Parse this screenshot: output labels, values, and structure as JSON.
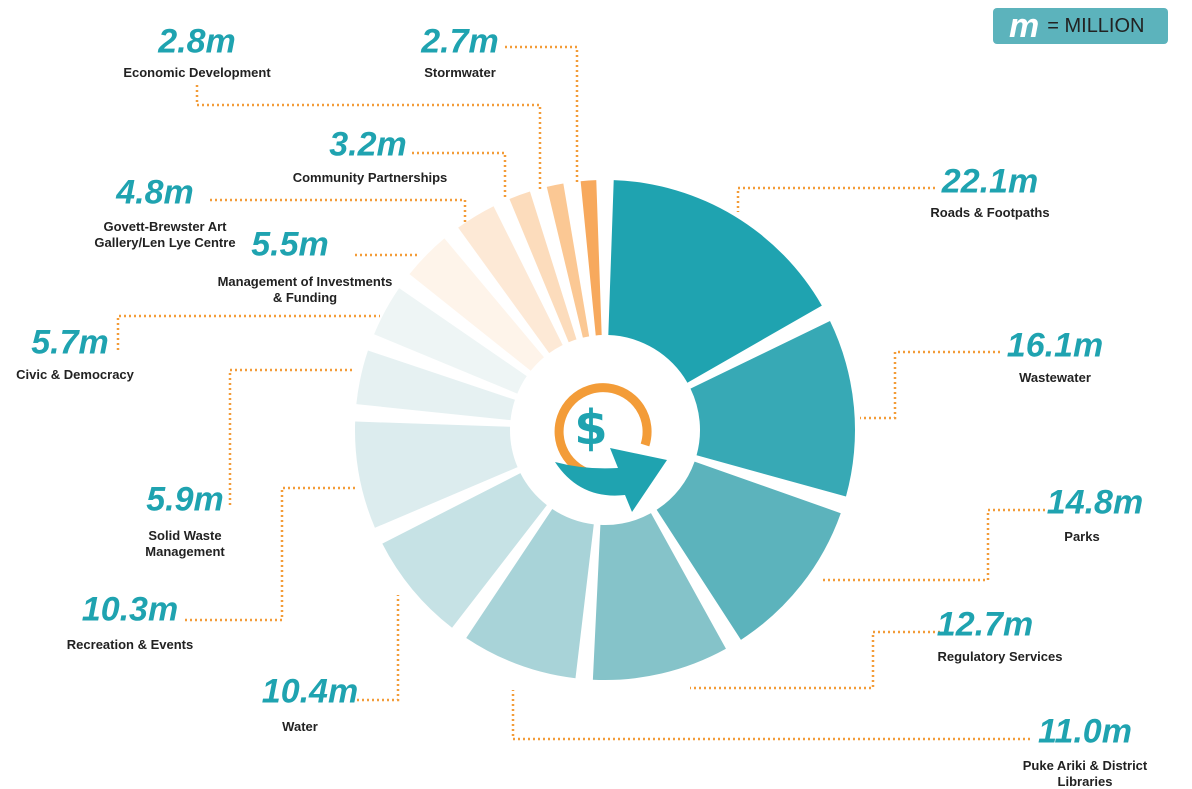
{
  "chart_data": {
    "type": "radial",
    "unit_note": {
      "symbol": "m",
      "text": "= MILLION"
    },
    "categories": [
      "Roads & Footpaths",
      "Wastewater",
      "Parks",
      "Regulatory Services",
      "Puke Ariki & District Libraries",
      "Water",
      "Recreation & Events",
      "Solid Waste Management",
      "Civic & Democracy",
      "Management of Investments & Funding",
      "Govett-Brewster Art Gallery/Len Lye Centre",
      "Community Partnerships",
      "Economic Development",
      "Stormwater"
    ],
    "values": [
      22.1,
      16.1,
      14.8,
      12.7,
      11.0,
      10.4,
      10.3,
      5.9,
      5.7,
      5.5,
      4.8,
      3.2,
      2.8,
      2.7
    ],
    "value_labels": [
      "22.1m",
      "16.1m",
      "14.8m",
      "12.7m",
      "11.0m",
      "10.4m",
      "10.3m",
      "5.9m",
      "5.7m",
      "5.5m",
      "4.8m",
      "3.2m",
      "2.8m",
      "2.7m"
    ],
    "colors": [
      "#1fa3b0",
      "#37a9b5",
      "#5cb3bc",
      "#85c3c9",
      "#a8d3d8",
      "#c6e2e5",
      "#dcecee",
      "#e6f1f2",
      "#eef5f5",
      "#fef4ea",
      "#fde9d6",
      "#fcdcbc",
      "#fbc894",
      "#f7a95d"
    ]
  }
}
